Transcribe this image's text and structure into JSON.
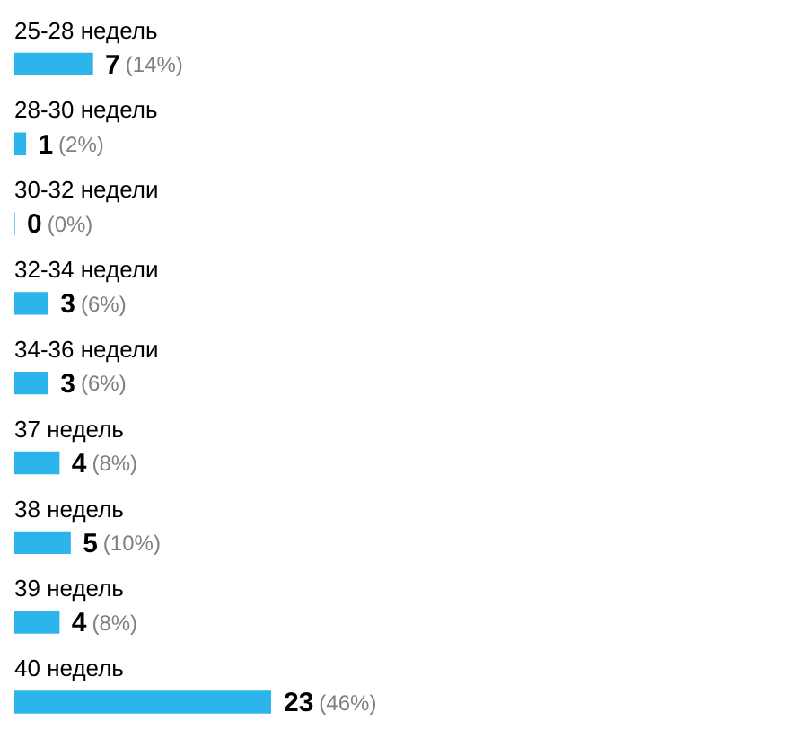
{
  "chart_data": {
    "type": "bar",
    "orientation": "horizontal",
    "categories": [
      "25-28 недель",
      "28-30 недель",
      "30-32 недели",
      "32-34 недели",
      "34-36 недели",
      "37 недель",
      "38 недель",
      "39 недель",
      "40 недель"
    ],
    "values": [
      7,
      1,
      0,
      3,
      3,
      4,
      5,
      4,
      23
    ],
    "color": "#2db4ea",
    "value_labels": [
      "7 (14%)",
      "1 (2%)",
      "0 (0%)",
      "3 (6%)",
      "3 (6%)",
      "4 (8%)",
      "5 (10%)",
      "4 (8%)",
      "23 (46%)"
    ],
    "tick_labels": "y"
  }
}
